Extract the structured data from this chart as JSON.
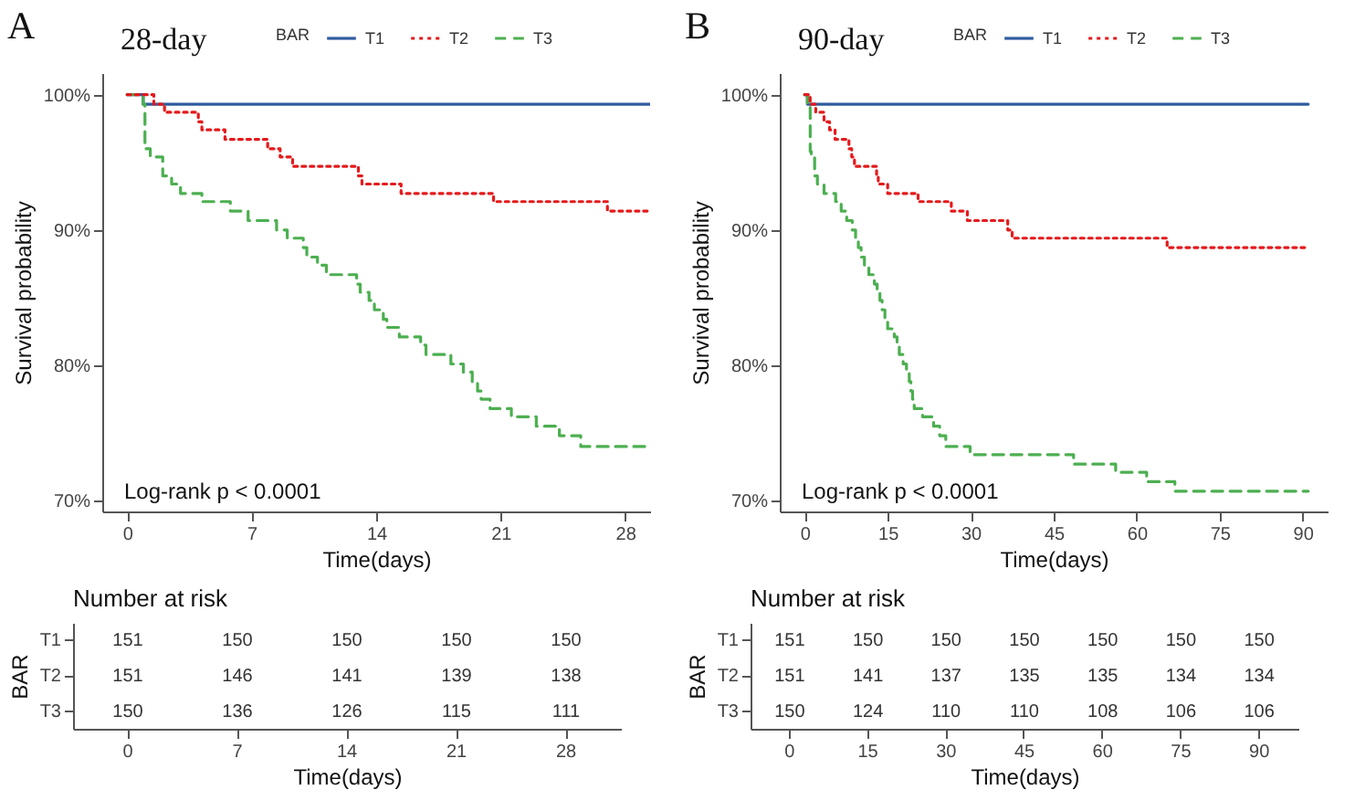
{
  "chart_data": [
    {
      "type": "step",
      "title": "28-day",
      "xlabel": "Time(days)",
      "ylabel": "Survival probability",
      "legend_title": "BAR",
      "legend": "top",
      "annotations": [
        "A",
        "Log-rank p < 0.0001"
      ],
      "xlim": [
        -1.4,
        29.4
      ],
      "xticks": [
        0,
        7,
        14,
        21,
        28
      ],
      "ylim": [
        69.2,
        101.6
      ],
      "yticks": [
        {
          "value": 70,
          "label": "70%"
        },
        {
          "value": 80,
          "label": "80%"
        },
        {
          "value": 90,
          "label": "90%"
        },
        {
          "value": 100,
          "label": "100%"
        }
      ],
      "series": [
        {
          "name": "T1",
          "color": "#2f5c9e",
          "line_style": "solid",
          "x": [
            0,
            0.9,
            29.4
          ],
          "values": [
            100,
            99.3,
            99.3
          ]
        },
        {
          "name": "T2",
          "color": "#e41a1c",
          "line_style": "dotted",
          "x": [
            0,
            1.5,
            2.1,
            4.0,
            4.2,
            5.5,
            7.9,
            8.6,
            9.3,
            13.0,
            13.2,
            15.4,
            20.6,
            27.0,
            29.4
          ],
          "values": [
            100,
            99.3,
            98.7,
            98.0,
            97.4,
            96.7,
            96.0,
            95.4,
            94.7,
            94.0,
            93.4,
            92.7,
            92.1,
            91.4,
            91.4
          ]
        },
        {
          "name": "T3",
          "color": "#4caf50",
          "line_style": "dashed",
          "x": [
            0,
            0.9,
            1.0,
            1.3,
            2.0,
            2.5,
            3.0,
            4.2,
            5.8,
            6.8,
            8.4,
            9.0,
            9.9,
            10.1,
            10.7,
            11.2,
            12.9,
            13.1,
            13.6,
            13.9,
            14.4,
            14.6,
            15.3,
            16.5,
            16.8,
            18.2,
            18.9,
            19.4,
            19.7,
            19.9,
            20.4,
            21.6,
            23.0,
            24.3,
            25.5,
            29.4
          ],
          "values": [
            100,
            99.3,
            96.0,
            95.4,
            94.0,
            93.4,
            92.7,
            92.1,
            91.4,
            90.7,
            90.0,
            89.4,
            88.7,
            88.0,
            87.4,
            86.7,
            86.0,
            85.4,
            84.8,
            84.1,
            83.4,
            82.8,
            82.1,
            81.5,
            80.8,
            80.1,
            79.5,
            78.8,
            78.1,
            77.5,
            76.8,
            76.2,
            75.5,
            74.8,
            74.0,
            74.0
          ]
        }
      ]
    },
    {
      "type": "heatmap",
      "title": "Number at risk",
      "xlabel": "Time(days)",
      "ylabel": "BAR",
      "data_labels": true,
      "categories": [
        "0",
        "7",
        "14",
        "21",
        "28"
      ],
      "y_categories": [
        "T1",
        "T2",
        "T3"
      ],
      "cells": [
        [
          151,
          150,
          150,
          150,
          150
        ],
        [
          151,
          146,
          141,
          139,
          138
        ],
        [
          150,
          136,
          126,
          115,
          111
        ]
      ]
    },
    {
      "type": "step",
      "title": "90-day",
      "xlabel": "Time(days)",
      "ylabel": "Survival probability",
      "legend_title": "BAR",
      "legend": "top",
      "annotations": [
        "B",
        "Log-rank p < 0.0001"
      ],
      "xlim": [
        -4.5,
        94.5
      ],
      "xticks": [
        0,
        15,
        30,
        45,
        60,
        75,
        90
      ],
      "ylim": [
        69.2,
        101.6
      ],
      "yticks": [
        {
          "value": 70,
          "label": "70%"
        },
        {
          "value": 80,
          "label": "80%"
        },
        {
          "value": 90,
          "label": "90%"
        },
        {
          "value": 100,
          "label": "100%"
        }
      ],
      "series": [
        {
          "name": "T1",
          "color": "#2f5c9e",
          "line_style": "solid",
          "x": [
            0,
            0.5,
            91
          ],
          "values": [
            100,
            99.3,
            99.3
          ]
        },
        {
          "name": "T2",
          "color": "#e41a1c",
          "line_style": "dotted",
          "x": [
            0,
            1,
            2,
            3.5,
            4.5,
            5.5,
            8,
            8.5,
            9,
            13,
            13.3,
            15,
            20.5,
            26.5,
            29.4,
            36.7,
            37.5,
            65.5,
            91
          ],
          "values": [
            100,
            99.3,
            98.7,
            98.0,
            97.4,
            96.7,
            96.0,
            95.4,
            94.7,
            94.0,
            93.4,
            92.7,
            92.1,
            91.4,
            90.7,
            90.0,
            89.4,
            88.7,
            88.7
          ]
        },
        {
          "name": "T3",
          "color": "#4caf50",
          "line_style": "dashed",
          "x": [
            0,
            0.5,
            1.0,
            1.2,
            1.8,
            2.3,
            3.5,
            5.6,
            6.6,
            7.6,
            8.6,
            9.2,
            9.7,
            10.2,
            10.8,
            11.6,
            12.6,
            13.1,
            13.6,
            14.0,
            14.5,
            15.0,
            16.2,
            16.7,
            17.1,
            17.8,
            18.4,
            18.9,
            19.2,
            19.5,
            19.8,
            21.3,
            23.3,
            24.4,
            25.5,
            29.9,
            48.6,
            56.2,
            61.8,
            66.9,
            91
          ],
          "values": [
            100,
            99.3,
            95.8,
            95.4,
            94.0,
            93.4,
            92.7,
            92.1,
            91.4,
            90.7,
            90.0,
            89.4,
            88.7,
            88.0,
            87.4,
            86.7,
            86.0,
            85.4,
            84.8,
            84.1,
            83.4,
            82.7,
            82.1,
            81.5,
            80.8,
            80.1,
            79.5,
            78.8,
            78.1,
            77.5,
            76.8,
            76.2,
            75.5,
            74.8,
            74.0,
            73.4,
            72.7,
            72.1,
            71.4,
            70.7,
            70.7
          ]
        }
      ]
    },
    {
      "type": "heatmap",
      "title": "Number at risk",
      "xlabel": "Time(days)",
      "ylabel": "BAR",
      "data_labels": true,
      "categories": [
        "0",
        "15",
        "30",
        "45",
        "60",
        "75",
        "90"
      ],
      "y_categories": [
        "T1",
        "T2",
        "T3"
      ],
      "cells": [
        [
          151,
          150,
          150,
          150,
          150,
          150,
          150
        ],
        [
          151,
          141,
          137,
          135,
          135,
          134,
          134
        ],
        [
          150,
          124,
          110,
          110,
          108,
          106,
          106
        ]
      ]
    }
  ]
}
